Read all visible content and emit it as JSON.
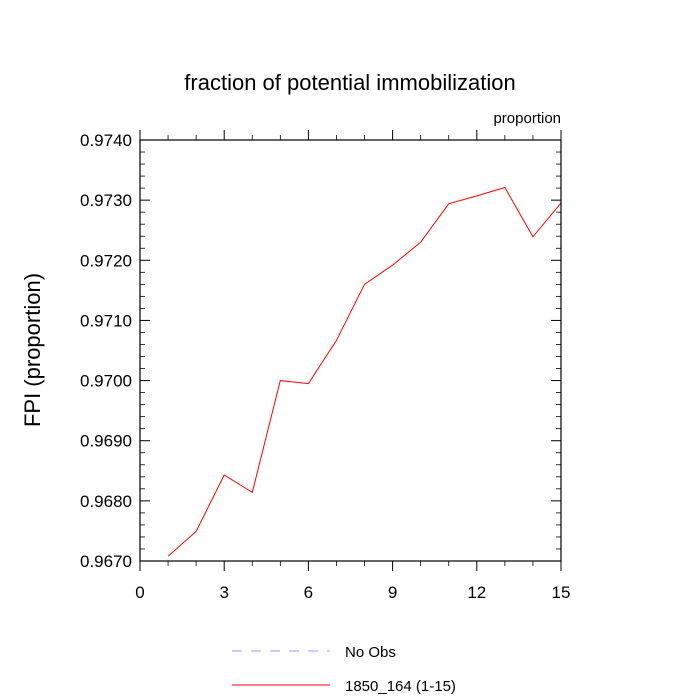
{
  "chart_data": {
    "type": "line",
    "title": "fraction of potential immobilization",
    "subtitle": "proportion",
    "xlabel": "",
    "ylabel": "FPI  (proportion)",
    "xlim": [
      0,
      15
    ],
    "ylim": [
      0.967,
      0.974
    ],
    "xticks": [
      0,
      3,
      6,
      9,
      12,
      15
    ],
    "xtick_labels": [
      "0",
      "3",
      "6",
      "9",
      "12",
      "15"
    ],
    "yticks": [
      0.967,
      0.968,
      0.969,
      0.97,
      0.971,
      0.972,
      0.973,
      0.974
    ],
    "ytick_labels": [
      "0.9670",
      "0.9680",
      "0.9690",
      "0.9700",
      "0.9710",
      "0.9720",
      "0.9730",
      "0.9740"
    ],
    "grid": false,
    "legend_position": "bottom-center",
    "series": [
      {
        "name": "1850_164 (1-15)",
        "color": "#ff0000",
        "style": "solid",
        "x": [
          1,
          2,
          3,
          4,
          5,
          6,
          7,
          8,
          9,
          10,
          11,
          12,
          13,
          14,
          15
        ],
        "y": [
          0.96708,
          0.96749,
          0.96843,
          0.96814,
          0.97,
          0.96995,
          0.97067,
          0.9716,
          0.97192,
          0.9723,
          0.97294,
          0.97307,
          0.97321,
          0.97239,
          0.97295
        ]
      }
    ],
    "legend": [
      {
        "label": "No Obs",
        "color": "#9999ff",
        "style": "dashed"
      },
      {
        "label": "1850_164 (1-15)",
        "color": "#ff0000",
        "style": "solid"
      }
    ]
  }
}
